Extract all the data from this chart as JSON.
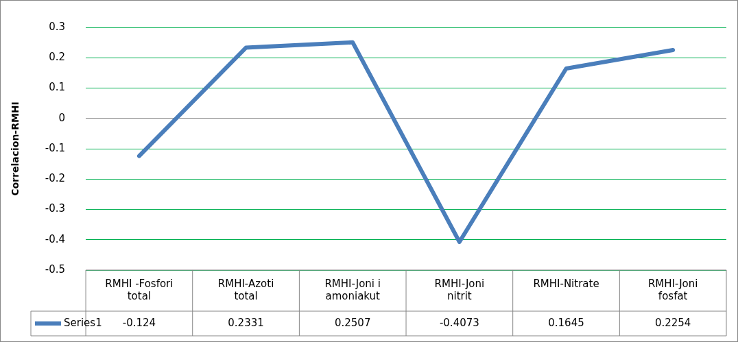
{
  "chart_data": {
    "type": "line",
    "ylabel": "Correlacion-RMHI",
    "categories": [
      "RMHI -Fosfori total",
      "RMHI-Azoti total",
      "RMHI-Joni i amoniakut",
      "RMHI-Joni nitrit",
      "RMHI-Nitrate",
      "RMHI-Joni fosfat"
    ],
    "series": [
      {
        "name": "Series1",
        "color": "#4a7ebb",
        "values": [
          -0.124,
          0.2331,
          0.2507,
          -0.4073,
          0.1645,
          0.2254
        ]
      }
    ],
    "ylim": [
      -0.5,
      0.3
    ],
    "yticks": [
      -0.5,
      -0.4,
      -0.3,
      -0.2,
      -0.1,
      0,
      0.1,
      0.2,
      0.3
    ],
    "grid": "y",
    "legend": "bottom",
    "data_labels": true,
    "marker": "none",
    "line_style": "solid"
  }
}
